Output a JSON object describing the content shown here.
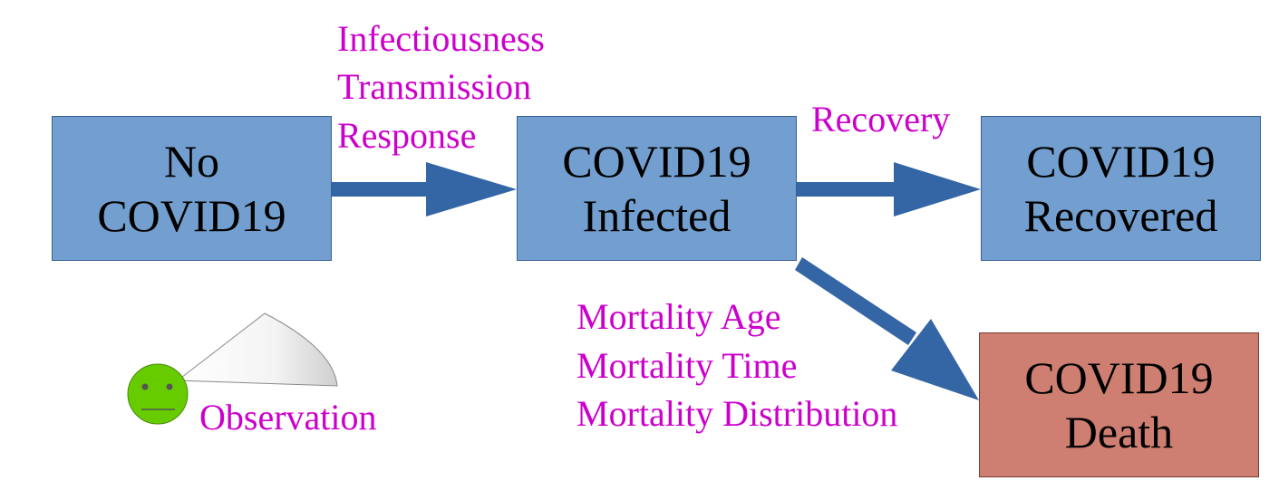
{
  "nodes": {
    "no_covid": {
      "lines": [
        "No",
        "COVID19"
      ],
      "color": "#729fcf"
    },
    "infected": {
      "lines": [
        "COVID19",
        "Infected"
      ],
      "color": "#729fcf"
    },
    "recovered": {
      "lines": [
        "COVID19",
        "Recovered"
      ],
      "color": "#729fcf"
    },
    "death": {
      "lines": [
        "COVID19",
        "Death"
      ],
      "color": "#cf7f72"
    }
  },
  "edges": {
    "infection": {
      "labels": [
        "Infectiousness",
        "Transmission",
        "Response"
      ]
    },
    "recovery": {
      "labels": [
        "Recovery"
      ]
    },
    "mortality": {
      "labels": [
        "Mortality Age",
        "Mortality Time",
        "Mortality Distribution"
      ]
    }
  },
  "observer": {
    "label": "Observation",
    "icon": "smiley-face-icon"
  },
  "colors": {
    "arrow": "#3465a4",
    "label": "#cc00cc",
    "observer_face": "#66cc00"
  }
}
